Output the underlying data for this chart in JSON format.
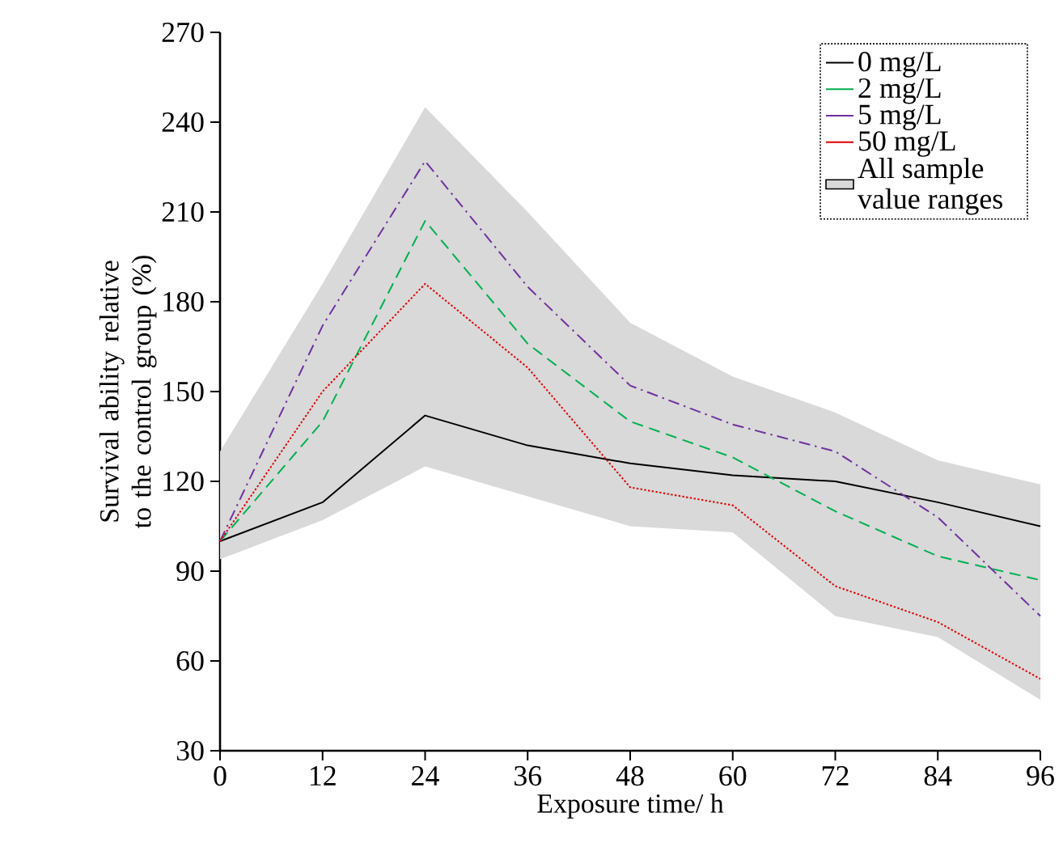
{
  "chart_data": {
    "type": "line",
    "xlabel": "Exposure time/ h",
    "ylabel": "Survival ability relative to the control group (%)",
    "x": [
      0,
      12,
      24,
      36,
      48,
      60,
      72,
      84,
      96
    ],
    "xlim": [
      0,
      96
    ],
    "xticks": [
      0,
      12,
      24,
      36,
      48,
      60,
      72,
      84,
      96
    ],
    "ylim": [
      30,
      270
    ],
    "yticks": [
      30,
      60,
      90,
      120,
      150,
      180,
      210,
      240,
      270
    ],
    "grid": false,
    "legend": "top right",
    "marker": "none",
    "series": [
      {
        "name": "All sample value ranges",
        "type": "area",
        "color": "#d9d9d9",
        "values": [
          null,
          null,
          null,
          null,
          null,
          null,
          null,
          null,
          null
        ],
        "lower": [
          94,
          107,
          125,
          115,
          105,
          103,
          75,
          68,
          47
        ],
        "upper": [
          130,
          186,
          245,
          210,
          173,
          155,
          143,
          127,
          119
        ]
      },
      {
        "name": "0 mg/L",
        "type": "line",
        "color": "#000000",
        "line_style": "solid",
        "values": [
          100,
          113,
          142,
          132,
          126,
          122,
          120,
          113,
          105
        ]
      },
      {
        "name": "2 mg/L",
        "type": "line",
        "color": "#00b050",
        "line_style": "dashed",
        "values": [
          100,
          140,
          207,
          166,
          140,
          128,
          110,
          95,
          87
        ]
      },
      {
        "name": "5 mg/L",
        "type": "line",
        "color": "#7030a0",
        "line_style": "dashdot",
        "values": [
          100,
          172,
          227,
          185,
          152,
          139,
          130,
          108,
          75
        ]
      },
      {
        "name": "50 mg/L",
        "type": "line",
        "color": "#e00000",
        "line_style": "dotted",
        "values": [
          100,
          150,
          186,
          158,
          118,
          112,
          85,
          73,
          54
        ]
      }
    ]
  }
}
